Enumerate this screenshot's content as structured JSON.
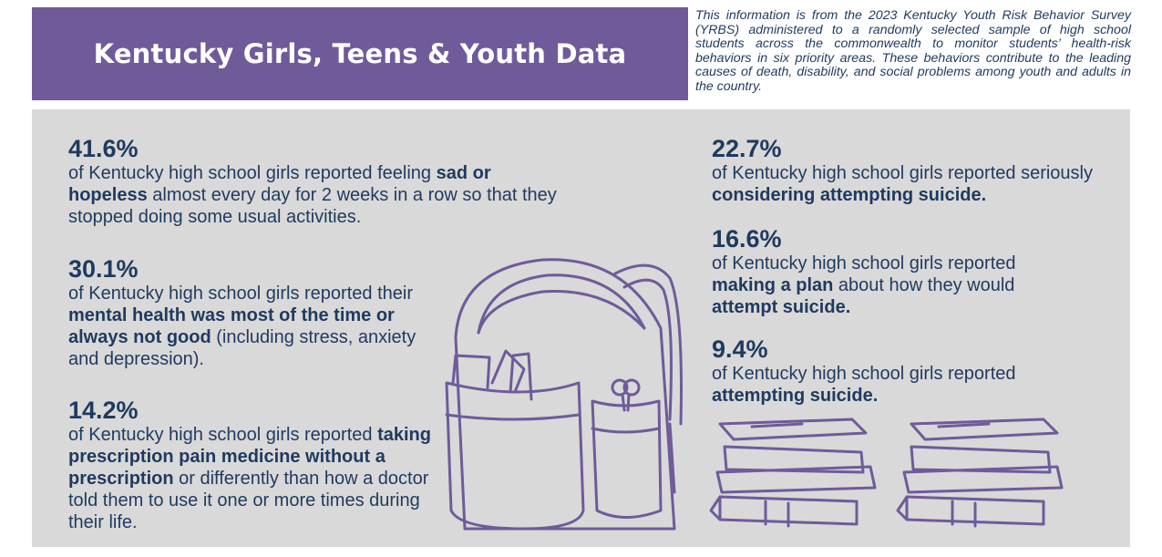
{
  "header": {
    "title": "Kentucky Girls, Teens & Youth Data",
    "intro": "This information is from the 2023 Kentucky Youth Risk Behavior Survey (YRBS) administered to a randomly selected sample of high school students across the commonwealth to monitor students’ health-risk behaviors in six priority areas. These behaviors contribute to the leading causes of death, disability, and social problems among youth and adults in the country."
  },
  "stats": [
    {
      "value": "41.6%",
      "segments": [
        {
          "text": "of Kentucky high school girls reported feeling ",
          "bold": false
        },
        {
          "text": "sad or hopeless",
          "bold": true
        },
        {
          "text": " almost every day for 2 weeks in a row so that they stopped doing some usual activities.",
          "bold": false
        }
      ]
    },
    {
      "value": "30.1%",
      "segments": [
        {
          "text": "of Kentucky high school girls reported their ",
          "bold": false
        },
        {
          "text": "mental health was most of the time or always not good",
          "bold": true
        },
        {
          "text": " (including stress, anxiety and depression).",
          "bold": false
        }
      ]
    },
    {
      "value": "14.2%",
      "segments": [
        {
          "text": "of Kentucky high school girls reported ",
          "bold": false
        },
        {
          "text": "taking prescription pain medicine without a prescription",
          "bold": true
        },
        {
          "text": " or differently than how a doctor told them to use it one or more times during their life.",
          "bold": false
        }
      ]
    },
    {
      "value": "22.7%",
      "segments": [
        {
          "text": "of Kentucky high school girls reported seriously ",
          "bold": false
        },
        {
          "text": "considering attempting suicide.",
          "bold": true
        }
      ]
    },
    {
      "value": "16.6%",
      "segments": [
        {
          "text": "of Kentucky high school girls reported ",
          "bold": false
        },
        {
          "text": "making a plan",
          "bold": true
        },
        {
          "text": " about how they would ",
          "bold": false
        },
        {
          "text": "attempt suicide.",
          "bold": true
        }
      ]
    },
    {
      "value": "9.4%",
      "segments": [
        {
          "text": "of Kentucky high school girls reported ",
          "bold": false
        },
        {
          "text": "attempting suicide.",
          "bold": true
        }
      ]
    }
  ]
}
